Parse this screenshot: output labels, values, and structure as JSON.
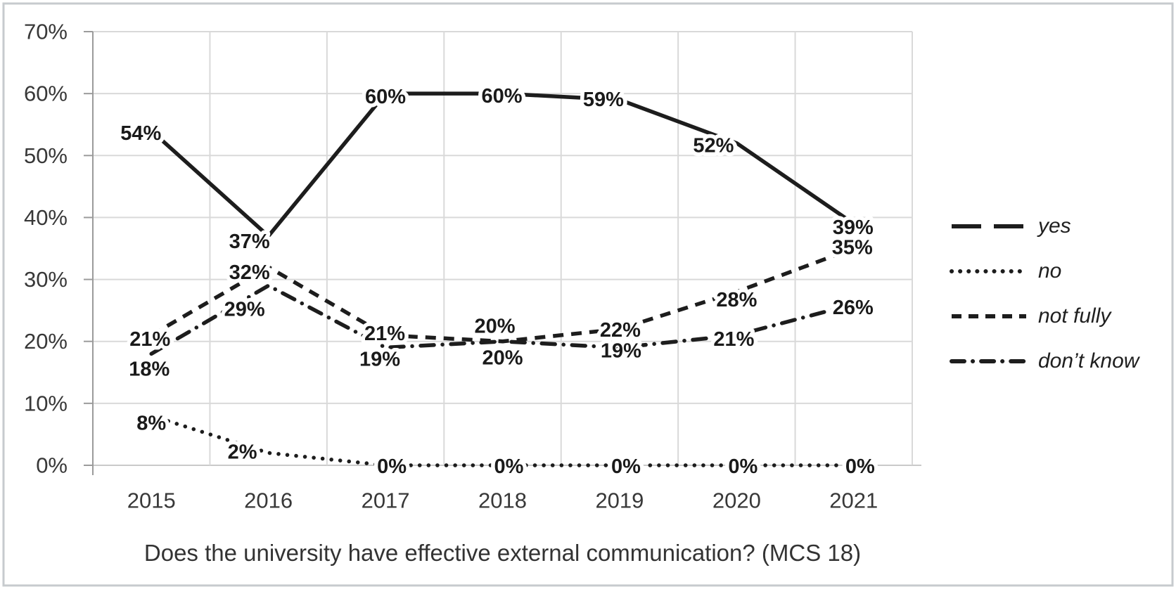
{
  "figure": {
    "background": "#ffffff",
    "border_color": "#c7cbce"
  },
  "chart_data": {
    "type": "line",
    "title": "Does the university have effective external communication? (MCS 18)",
    "categories": [
      "2015",
      "2016",
      "2017",
      "2018",
      "2019",
      "2020",
      "2021"
    ],
    "series": [
      {
        "name": "yes",
        "style": "solid",
        "values": [
          54,
          37,
          60,
          60,
          59,
          52,
          39
        ],
        "labels": [
          "54%",
          "37%",
          "60%",
          "60%",
          "59%",
          "52%",
          "39%"
        ]
      },
      {
        "name": "no",
        "style": "dotted",
        "values": [
          8,
          2,
          0,
          0,
          0,
          0,
          0
        ],
        "labels": [
          "8%",
          "2%",
          "0%",
          "0%",
          "0%",
          "0%",
          "0%"
        ]
      },
      {
        "name": "not fully",
        "style": "dashed",
        "values": [
          21,
          32,
          21,
          20,
          22,
          28,
          35
        ],
        "labels": [
          "21%",
          "32%",
          "21%",
          "20%",
          "22%",
          "28%",
          "35%"
        ]
      },
      {
        "name": "don’t know",
        "style": "dash-dot",
        "values": [
          18,
          29,
          19,
          20,
          19,
          21,
          26
        ],
        "labels": [
          "18%",
          "29%",
          "19%",
          "20%",
          "19%",
          "21%",
          "26%"
        ]
      }
    ],
    "y_axis": {
      "min": 0,
      "max": 70,
      "step": 10,
      "tick_labels": [
        "0%",
        "10%",
        "20%",
        "30%",
        "40%",
        "50%",
        "60%",
        "70%"
      ]
    },
    "x_axis": {
      "tick_labels": [
        "2015",
        "2016",
        "2017",
        "2018",
        "2019",
        "2020",
        "2021"
      ]
    },
    "legend_position": "right",
    "grid": true,
    "colors": {
      "line": "#1d1d1d",
      "data_label": "#1a1a1a",
      "axis_text": "#383838",
      "gridline": "#d9d9d9",
      "axis_line": "#9b9b9b",
      "baseline": "#c9c9c9"
    }
  }
}
